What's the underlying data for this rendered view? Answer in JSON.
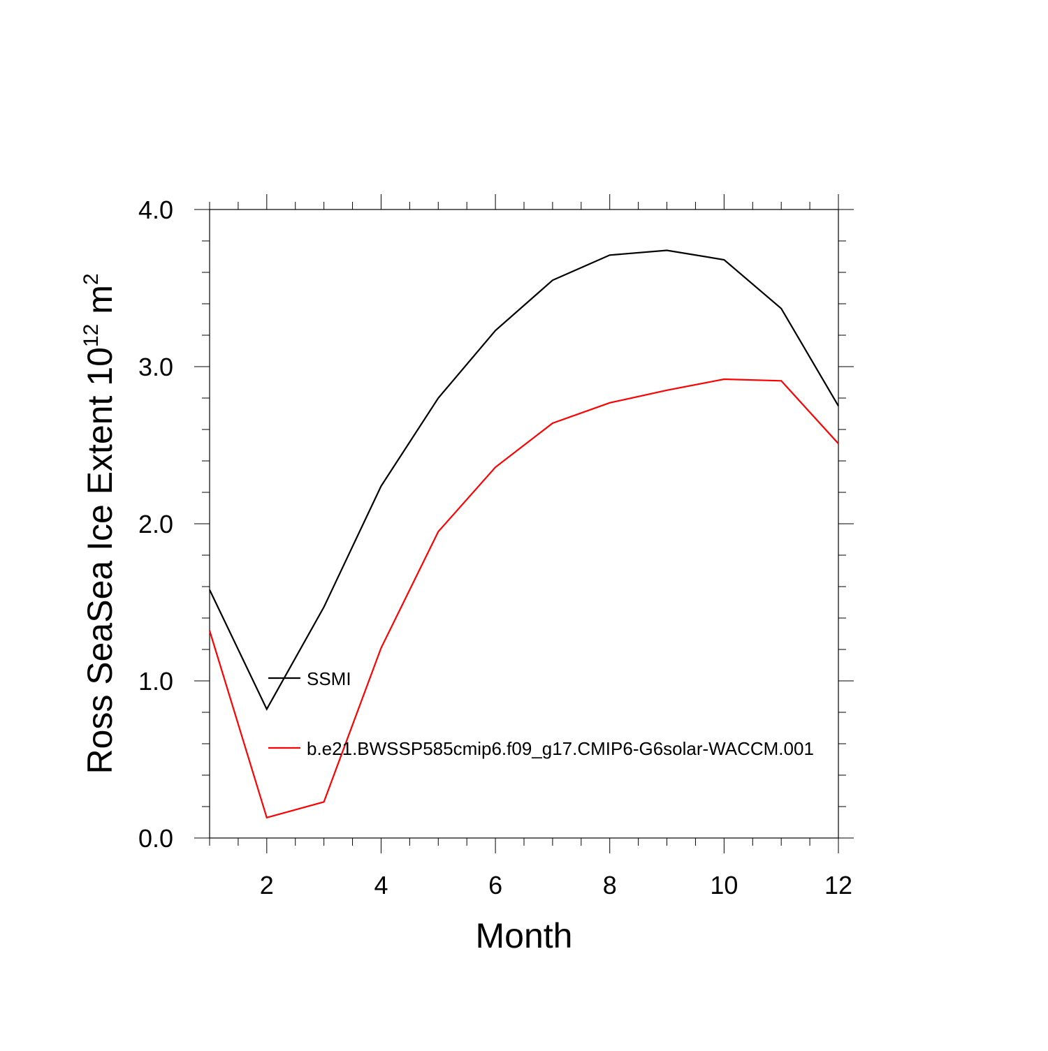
{
  "chart_data": {
    "type": "line",
    "xlabel": "Month",
    "ylabel": {
      "base": "Ross SeaSea Ice Extent 10",
      "exponent": "12",
      "unit": " m",
      "unit_exponent": "2"
    },
    "x": [
      1,
      2,
      3,
      4,
      5,
      6,
      7,
      8,
      9,
      10,
      11,
      12
    ],
    "xlim": [
      1,
      12
    ],
    "ylim": [
      0,
      4
    ],
    "x_ticks": [
      2,
      4,
      6,
      8,
      10,
      12
    ],
    "x_tick_labels": [
      "2",
      "4",
      "6",
      "8",
      "10",
      "12"
    ],
    "y_ticks": [
      0,
      1,
      2,
      3,
      4
    ],
    "y_tick_labels": [
      "0.0",
      "1.0",
      "2.0",
      "3.0",
      "4.0"
    ],
    "grid": false,
    "legend_position": "inside-left",
    "series": [
      {
        "name": "SSMI",
        "color": "#000000",
        "values": [
          1.58,
          0.82,
          1.47,
          2.24,
          2.8,
          3.23,
          3.55,
          3.71,
          3.74,
          3.68,
          3.37,
          2.75
        ]
      },
      {
        "name": "b.e21.BWSSP585cmip6.f09_g17.CMIP6-G6solar-WACCM.001",
        "color": "#ff0000",
        "values": [
          1.32,
          0.13,
          0.23,
          1.21,
          1.95,
          2.36,
          2.64,
          2.77,
          2.85,
          2.92,
          2.91,
          2.51
        ]
      }
    ]
  }
}
